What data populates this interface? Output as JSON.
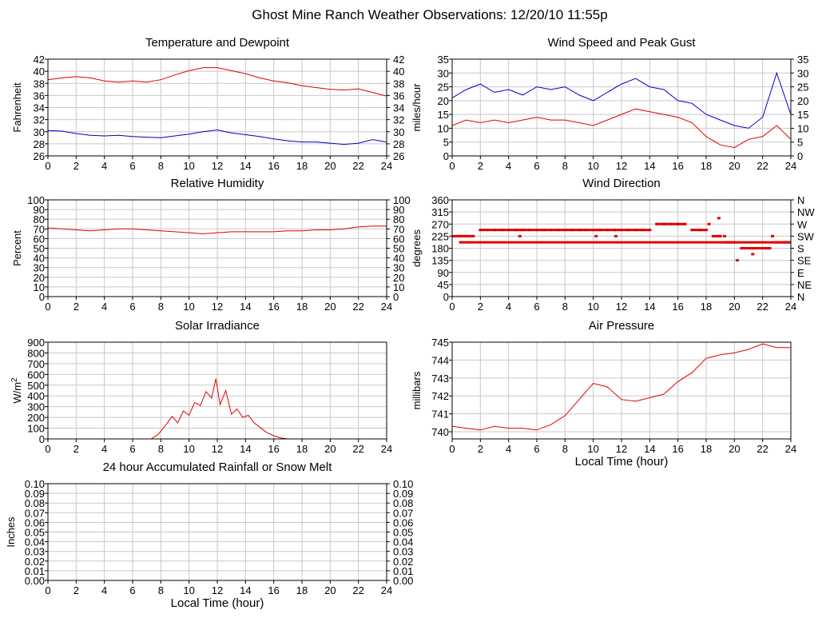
{
  "page": {
    "title": "Ghost Mine Ranch Weather Observations: 12/20/10 11:55p"
  },
  "colors": {
    "red": "#e00000",
    "blue": "#0000cc",
    "grid": "#c8c8c8",
    "frame": "#000000"
  },
  "chart_data": [
    {
      "id": "temp",
      "type": "line",
      "title": "Temperature and Dewpoint",
      "ylabel": "Fahrenheit",
      "xlabel": "",
      "xlim": [
        0,
        24
      ],
      "ylim": [
        26,
        42
      ],
      "yticks": [
        26,
        28,
        30,
        32,
        34,
        36,
        38,
        40,
        42
      ],
      "xticks": [
        0,
        2,
        4,
        6,
        8,
        10,
        12,
        14,
        16,
        18,
        20,
        22,
        24
      ],
      "right_ticks": true,
      "grid": true,
      "series": [
        {
          "color": "#e00000",
          "x": [
            0,
            1,
            2,
            3,
            4,
            5,
            6,
            7,
            8,
            9,
            10,
            11,
            12,
            13,
            14,
            15,
            16,
            17,
            18,
            19,
            20,
            21,
            22,
            23,
            24
          ],
          "y": [
            38.6,
            38.9,
            39.1,
            38.9,
            38.4,
            38.2,
            38.4,
            38.2,
            38.6,
            39.4,
            40.1,
            40.6,
            40.6,
            40.1,
            39.6,
            38.9,
            38.4,
            38.1,
            37.6,
            37.3,
            37.0,
            36.9,
            37.1,
            36.5,
            35.9
          ]
        },
        {
          "color": "#0000cc",
          "x": [
            0,
            1,
            2,
            3,
            4,
            5,
            6,
            7,
            8,
            9,
            10,
            11,
            12,
            13,
            14,
            15,
            16,
            17,
            18,
            19,
            20,
            21,
            22,
            23,
            24
          ],
          "y": [
            30.2,
            30.1,
            29.7,
            29.4,
            29.3,
            29.4,
            29.2,
            29.1,
            29.0,
            29.3,
            29.6,
            30.0,
            30.3,
            29.8,
            29.5,
            29.2,
            28.8,
            28.5,
            28.3,
            28.3,
            28.1,
            27.9,
            28.1,
            28.7,
            28.3
          ]
        }
      ]
    },
    {
      "id": "wind",
      "type": "line",
      "title": "Wind Speed and Peak Gust",
      "ylabel": "miles/hour",
      "xlabel": "",
      "xlim": [
        0,
        24
      ],
      "ylim": [
        0,
        35
      ],
      "yticks": [
        0,
        5,
        10,
        15,
        20,
        25,
        30,
        35
      ],
      "xticks": [
        0,
        2,
        4,
        6,
        8,
        10,
        12,
        14,
        16,
        18,
        20,
        22,
        24
      ],
      "right_ticks": true,
      "grid": true,
      "series": [
        {
          "color": "#0000cc",
          "x": [
            0,
            1,
            2,
            3,
            4,
            5,
            6,
            7,
            8,
            9,
            10,
            11,
            12,
            13,
            14,
            15,
            16,
            17,
            18,
            19,
            20,
            21,
            22,
            23,
            24
          ],
          "y": [
            21,
            24,
            26,
            23,
            24,
            22,
            25,
            24,
            25,
            22,
            20,
            23,
            26,
            28,
            25,
            24,
            20,
            19,
            15,
            13,
            11,
            10,
            14,
            30,
            15
          ]
        },
        {
          "color": "#e00000",
          "x": [
            0,
            1,
            2,
            3,
            4,
            5,
            6,
            7,
            8,
            9,
            10,
            11,
            12,
            13,
            14,
            15,
            16,
            17,
            18,
            19,
            20,
            21,
            22,
            23,
            24
          ],
          "y": [
            11,
            13,
            12,
            13,
            12,
            13,
            14,
            13,
            13,
            12,
            11,
            13,
            15,
            17,
            16,
            15,
            14,
            12,
            7,
            4,
            3,
            6,
            7,
            11,
            6
          ]
        }
      ]
    },
    {
      "id": "rh",
      "type": "line",
      "title": "Relative Humidity",
      "ylabel": "Percent",
      "xlabel": "",
      "xlim": [
        0,
        24
      ],
      "ylim": [
        0,
        100
      ],
      "yticks": [
        0,
        10,
        20,
        30,
        40,
        50,
        60,
        70,
        80,
        90,
        100
      ],
      "xticks": [
        0,
        2,
        4,
        6,
        8,
        10,
        12,
        14,
        16,
        18,
        20,
        22,
        24
      ],
      "right_ticks": true,
      "grid": true,
      "series": [
        {
          "color": "#e00000",
          "x": [
            0,
            1,
            2,
            3,
            4,
            5,
            6,
            7,
            8,
            9,
            10,
            11,
            12,
            13,
            14,
            15,
            16,
            17,
            18,
            19,
            20,
            21,
            22,
            23,
            24
          ],
          "y": [
            71,
            70,
            69,
            68,
            69,
            70,
            70,
            69,
            68,
            67,
            66,
            65,
            66,
            67,
            67,
            67,
            67,
            68,
            68,
            69,
            69,
            70,
            72,
            73,
            73
          ]
        }
      ]
    },
    {
      "id": "wdir",
      "type": "scatter",
      "title": "Wind Direction",
      "ylabel": "degrees",
      "xlabel": "",
      "xlim": [
        0,
        24
      ],
      "ylim": [
        0,
        360
      ],
      "yticks": [
        0,
        45,
        90,
        135,
        180,
        225,
        270,
        315,
        360
      ],
      "right_tick_labels": [
        "N",
        "NE",
        "E",
        "SE",
        "S",
        "SW",
        "W",
        "NW",
        "N"
      ],
      "xticks": [
        0,
        2,
        4,
        6,
        8,
        10,
        12,
        14,
        16,
        18,
        20,
        22,
        24
      ],
      "grid": true,
      "series": [
        {
          "color": "#e00000",
          "x": [
            0,
            0.5,
            1,
            1.5,
            2,
            2.5,
            3,
            3.5,
            4,
            4.5,
            5,
            5.5,
            6,
            6.5,
            7,
            7.5,
            8,
            8.5,
            9,
            9.5,
            10,
            10.5,
            11,
            11.5,
            12,
            12.5,
            13,
            13.5,
            14,
            14.5,
            15,
            15.5,
            16,
            16.5,
            17,
            17.5,
            18,
            18.5,
            19,
            19.5,
            20,
            20.5,
            21,
            21.5,
            22,
            22.5,
            23,
            23.5,
            24,
            0.6,
            1.2,
            4.8,
            10.2,
            11.6,
            18.2,
            18.9,
            19.3,
            20.2,
            21.3,
            22.7
          ],
          "y": [
            225,
            225,
            225,
            225,
            248,
            248,
            248,
            248,
            248,
            248,
            248,
            248,
            248,
            248,
            248,
            248,
            248,
            248,
            248,
            248,
            248,
            248,
            248,
            248,
            248,
            248,
            248,
            248,
            248,
            270,
            270,
            270,
            270,
            270,
            248,
            248,
            248,
            225,
            225,
            202,
            202,
            180,
            180,
            180,
            180,
            180,
            202,
            202,
            202,
            202,
            202,
            225,
            225,
            225,
            270,
            292,
            225,
            135,
            158,
            225
          ]
        }
      ]
    },
    {
      "id": "solar",
      "type": "line",
      "title": "Solar Irradiance",
      "ylabel": "W/m2",
      "xlabel": "",
      "xlim": [
        0,
        24
      ],
      "ylim": [
        0,
        900
      ],
      "yticks": [
        0,
        100,
        200,
        300,
        400,
        500,
        600,
        700,
        800,
        900
      ],
      "xticks": [
        0,
        2,
        4,
        6,
        8,
        10,
        12,
        14,
        16,
        18,
        20,
        22,
        24
      ],
      "grid": true,
      "series": [
        {
          "color": "#e00000",
          "x": [
            0,
            7.3,
            7.8,
            8.3,
            8.8,
            9.2,
            9.6,
            10.0,
            10.4,
            10.8,
            11.2,
            11.6,
            11.9,
            12.2,
            12.6,
            13.0,
            13.4,
            13.8,
            14.2,
            14.6,
            15.0,
            15.5,
            16.0,
            16.5,
            17.0,
            24
          ],
          "y": [
            0,
            0,
            40,
            120,
            210,
            150,
            260,
            220,
            340,
            310,
            440,
            380,
            560,
            320,
            450,
            230,
            280,
            200,
            220,
            150,
            110,
            60,
            30,
            10,
            0,
            0
          ]
        }
      ]
    },
    {
      "id": "pressure",
      "type": "line",
      "title": "Air Pressure",
      "ylabel": "millibars",
      "xlabel": "Local Time (hour)",
      "xlim": [
        0,
        24
      ],
      "ylim": [
        739.6,
        745.0
      ],
      "yticks": [
        740,
        741,
        742,
        743,
        744,
        745
      ],
      "xticks": [
        0,
        2,
        4,
        6,
        8,
        10,
        12,
        14,
        16,
        18,
        20,
        22,
        24
      ],
      "grid": true,
      "series": [
        {
          "color": "#e00000",
          "x": [
            0,
            1,
            2,
            3,
            4,
            5,
            6,
            7,
            8,
            9,
            10,
            11,
            12,
            13,
            14,
            15,
            16,
            17,
            18,
            19,
            20,
            21,
            22,
            23,
            24
          ],
          "y": [
            740.3,
            740.2,
            740.1,
            740.3,
            740.2,
            740.2,
            740.1,
            740.4,
            740.9,
            741.8,
            742.7,
            742.5,
            741.8,
            741.7,
            741.9,
            742.1,
            742.8,
            743.3,
            744.1,
            744.3,
            744.4,
            744.6,
            744.9,
            744.7,
            744.7
          ]
        }
      ]
    },
    {
      "id": "rain",
      "type": "line",
      "title": "24 hour Accumulated Rainfall or Snow Melt",
      "ylabel": "Inches",
      "xlabel": "Local Time (hour)",
      "xlim": [
        0,
        24
      ],
      "ylim": [
        0,
        0.1
      ],
      "yticks": [
        0,
        0.01,
        0.02,
        0.03,
        0.04,
        0.05,
        0.06,
        0.07,
        0.08,
        0.09,
        0.1
      ],
      "ytick_labels": [
        "0.00",
        "0.01",
        "0.02",
        "0.03",
        "0.04",
        "0.05",
        "0.06",
        "0.07",
        "0.08",
        "0.09",
        "0.10"
      ],
      "xticks": [
        0,
        2,
        4,
        6,
        8,
        10,
        12,
        14,
        16,
        18,
        20,
        22,
        24
      ],
      "right_ticks": true,
      "grid": true,
      "series": [
        {
          "color": "#e00000",
          "x": [
            0,
            24
          ],
          "y": [
            0,
            0
          ]
        }
      ]
    }
  ]
}
